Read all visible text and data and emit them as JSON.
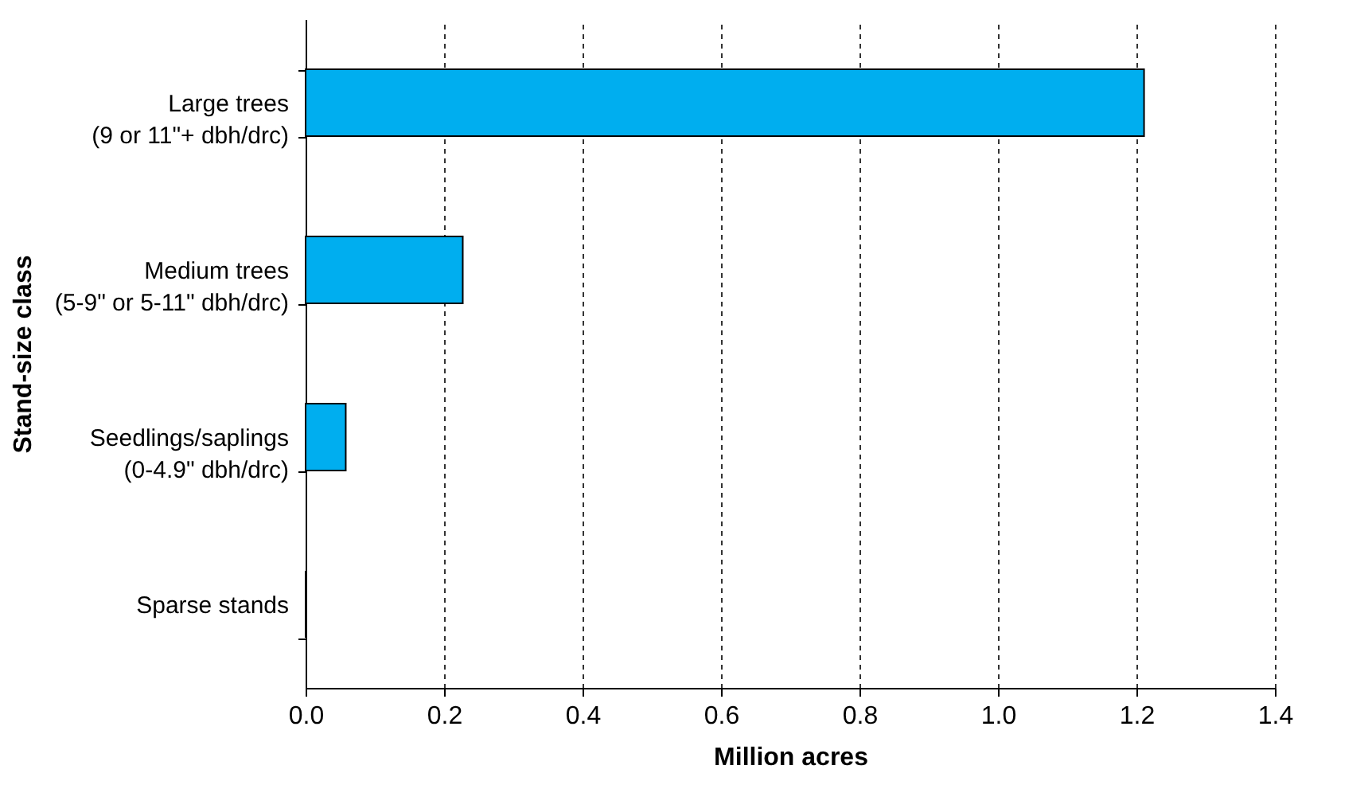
{
  "chart_data": {
    "type": "bar",
    "orientation": "horizontal",
    "categories": [
      "Large trees\n(9 or 11\"+ dbh/drc)",
      "Medium trees\n(5-9\" or 5-11\" dbh/drc)",
      "Seedlings/saplings\n(0-4.9\" dbh/drc)",
      "Sparse stands"
    ],
    "values": [
      1.211,
      0.227,
      0.058,
      0
    ],
    "color": "#00aeef",
    "xlabel": "Million acres",
    "ylabel": "Stand-size class",
    "xlim": [
      0,
      1.4
    ],
    "xticks": [
      {
        "value": 0,
        "label": "0.0"
      },
      {
        "value": 0.2,
        "label": "0.2"
      },
      {
        "value": 0.4,
        "label": "0.4"
      },
      {
        "value": 0.6,
        "label": "0.6"
      },
      {
        "value": 0.8,
        "label": "0.8"
      },
      {
        "value": 1,
        "label": "1.0"
      },
      {
        "value": 1.2,
        "label": "1.2"
      },
      {
        "value": 1.4,
        "label": "1.4"
      }
    ],
    "grid": "x"
  }
}
